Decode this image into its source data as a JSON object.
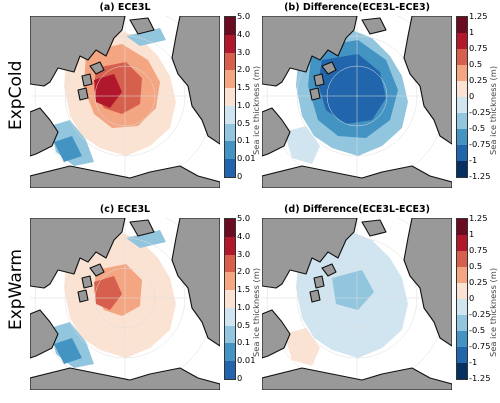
{
  "rows": [
    "ExpCold",
    "ExpWarm"
  ],
  "panels": {
    "a": "(a) ECE3L",
    "b": "(b) Difference(ECE3L-ECE3)",
    "c": "(c) ECE3L",
    "d": "(d) Difference(ECE3L-ECE3)"
  },
  "colorbar_thickness": {
    "label": "Sea ice thickness (m)",
    "ticks": [
      "5.0",
      "4.0",
      "3.0",
      "2.0",
      "1.5",
      "1.0",
      "0.5",
      "0.1",
      "0.01",
      "0"
    ],
    "colors": [
      "#6b0c22",
      "#b2182b",
      "#d6604d",
      "#f4a582",
      "#fbe3d4",
      "#d1e5f0",
      "#92c5de",
      "#4393c3",
      "#2166ac"
    ]
  },
  "colorbar_difference": {
    "label": "Sea ice thickness (m)",
    "ticks": [
      "1.25",
      "1",
      "0.75",
      "0.5",
      "0.25",
      "0",
      "-0.25",
      "-0.5",
      "-0.75",
      "-1",
      "-1.25"
    ],
    "colors": [
      "#6b0c22",
      "#b2182b",
      "#d6604d",
      "#f4a582",
      "#fbe3d4",
      "#d1e5f0",
      "#92c5de",
      "#4393c3",
      "#2166ac",
      "#053061"
    ]
  },
  "map_colors": {
    "land": "#999999",
    "ocean": "#ffffff",
    "coast": "#111111",
    "graticule": "#dddddd"
  }
}
